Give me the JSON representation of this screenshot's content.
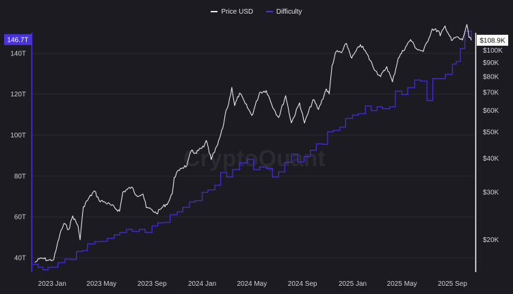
{
  "watermark": "CryptoQuant",
  "colors": {
    "background": "#1c1b21",
    "price": "#e8e8ec",
    "difficulty": "#3f2ccc",
    "left_badge": "#4a33d6",
    "right_badge_bg": "#ffffff",
    "right_badge_text": "#111111"
  },
  "chart_data": {
    "type": "line",
    "legend_position": "top-center",
    "grid": "horizontal",
    "x_range": [
      "2022-11-15",
      "2025-10-25"
    ],
    "x_ticks": [
      "2023 Jan",
      "2023 May",
      "2023 Sep",
      "2024 Jan",
      "2024 May",
      "2024 Sep",
      "2025 Jan",
      "2025 May",
      "2025 Sep"
    ],
    "left_axis": {
      "scale": "linear",
      "range": [
        33,
        150
      ],
      "ticks": [
        "40T",
        "60T",
        "80T",
        "100T",
        "120T",
        "140T"
      ],
      "tick_values": [
        40,
        60,
        80,
        100,
        120,
        140
      ],
      "unit": "T"
    },
    "right_axis": {
      "scale": "log",
      "range": [
        15200,
        116000
      ],
      "ticks": [
        "$20K",
        "$30K",
        "$40K",
        "$50K",
        "$60K",
        "$70K",
        "$80K",
        "$90K",
        "$100K"
      ],
      "tick_values": [
        20000,
        30000,
        40000,
        50000,
        60000,
        70000,
        80000,
        90000,
        100000
      ]
    },
    "current_values": {
      "difficulty": "146.7T",
      "price": "$108.9K"
    },
    "series": [
      {
        "name": "Price USD",
        "axis": "right",
        "points": [
          [
            "2022-11-20",
            16500
          ],
          [
            "2022-12-01",
            17000
          ],
          [
            "2022-12-10",
            17100
          ],
          [
            "2022-12-22",
            16800
          ],
          [
            "2023-01-05",
            16900
          ],
          [
            "2023-01-12",
            18800
          ],
          [
            "2023-01-20",
            21000
          ],
          [
            "2023-01-30",
            23000
          ],
          [
            "2023-02-10",
            21800
          ],
          [
            "2023-02-20",
            24500
          ],
          [
            "2023-03-05",
            22500
          ],
          [
            "2023-03-10",
            20000
          ],
          [
            "2023-03-18",
            26500
          ],
          [
            "2023-03-30",
            28300
          ],
          [
            "2023-04-14",
            30300
          ],
          [
            "2023-04-25",
            28000
          ],
          [
            "2023-05-10",
            27500
          ],
          [
            "2023-05-25",
            26800
          ],
          [
            "2023-06-14",
            25500
          ],
          [
            "2023-06-22",
            30000
          ],
          [
            "2023-07-13",
            31300
          ],
          [
            "2023-07-25",
            29200
          ],
          [
            "2023-08-10",
            29500
          ],
          [
            "2023-08-18",
            26300
          ],
          [
            "2023-09-01",
            25800
          ],
          [
            "2023-09-12",
            25000
          ],
          [
            "2023-09-25",
            26300
          ],
          [
            "2023-10-10",
            27400
          ],
          [
            "2023-10-20",
            29500
          ],
          [
            "2023-10-25",
            34000
          ],
          [
            "2023-11-09",
            36700
          ],
          [
            "2023-11-25",
            37600
          ],
          [
            "2023-12-05",
            42500
          ],
          [
            "2023-12-15",
            41800
          ],
          [
            "2024-01-05",
            44000
          ],
          [
            "2024-01-11",
            46500
          ],
          [
            "2024-01-23",
            39500
          ],
          [
            "2024-02-08",
            45000
          ],
          [
            "2024-02-20",
            51500
          ],
          [
            "2024-02-28",
            60000
          ],
          [
            "2024-03-05",
            63000
          ],
          [
            "2024-03-13",
            73000
          ],
          [
            "2024-03-20",
            62500
          ],
          [
            "2024-04-01",
            69500
          ],
          [
            "2024-04-15",
            63500
          ],
          [
            "2024-05-01",
            57500
          ],
          [
            "2024-05-20",
            70000
          ],
          [
            "2024-06-05",
            71000
          ],
          [
            "2024-06-24",
            60500
          ],
          [
            "2024-07-05",
            56500
          ],
          [
            "2024-07-22",
            68000
          ],
          [
            "2024-08-05",
            54000
          ],
          [
            "2024-08-25",
            64000
          ],
          [
            "2024-09-06",
            53900
          ],
          [
            "2024-09-27",
            65800
          ],
          [
            "2024-10-10",
            60500
          ],
          [
            "2024-10-29",
            72000
          ],
          [
            "2024-11-05",
            69000
          ],
          [
            "2024-11-12",
            88000
          ],
          [
            "2024-11-22",
            99000
          ],
          [
            "2024-12-05",
            98000
          ],
          [
            "2024-12-17",
            106000
          ],
          [
            "2024-12-30",
            93500
          ],
          [
            "2025-01-20",
            105000
          ],
          [
            "2025-02-03",
            98000
          ],
          [
            "2025-02-26",
            84000
          ],
          [
            "2025-03-10",
            80000
          ],
          [
            "2025-03-25",
            87000
          ],
          [
            "2025-04-08",
            76500
          ],
          [
            "2025-04-22",
            93500
          ],
          [
            "2025-05-10",
            103000
          ],
          [
            "2025-05-22",
            109500
          ],
          [
            "2025-06-05",
            101500
          ],
          [
            "2025-06-22",
            99000
          ],
          [
            "2025-07-14",
            120000
          ],
          [
            "2025-07-30",
            117500
          ],
          [
            "2025-08-02",
            113000
          ],
          [
            "2025-08-14",
            123000
          ],
          [
            "2025-08-30",
            108500
          ],
          [
            "2025-09-10",
            112000
          ],
          [
            "2025-09-25",
            109000
          ],
          [
            "2025-10-06",
            124500
          ],
          [
            "2025-10-11",
            111500
          ],
          [
            "2025-10-17",
            108900
          ]
        ]
      },
      {
        "name": "Difficulty",
        "axis": "left",
        "points": [
          [
            "2022-11-15",
            36.8
          ],
          [
            "2022-11-28",
            35.4
          ],
          [
            "2022-12-10",
            34.1
          ],
          [
            "2022-12-22",
            35.3
          ],
          [
            "2023-01-04",
            35.4
          ],
          [
            "2023-01-15",
            37.6
          ],
          [
            "2023-02-01",
            39.4
          ],
          [
            "2023-02-15",
            39.2
          ],
          [
            "2023-03-01",
            43.1
          ],
          [
            "2023-03-15",
            43.5
          ],
          [
            "2023-03-28",
            46.8
          ],
          [
            "2023-04-15",
            47.9
          ],
          [
            "2023-05-01",
            48.0
          ],
          [
            "2023-05-15",
            49.5
          ],
          [
            "2023-06-01",
            51.2
          ],
          [
            "2023-06-15",
            52.4
          ],
          [
            "2023-07-01",
            53.9
          ],
          [
            "2023-07-15",
            52.9
          ],
          [
            "2023-08-01",
            53.9
          ],
          [
            "2023-08-15",
            52.4
          ],
          [
            "2023-09-01",
            55.6
          ],
          [
            "2023-09-15",
            57.1
          ],
          [
            "2023-10-01",
            57.3
          ],
          [
            "2023-10-15",
            61.0
          ],
          [
            "2023-11-01",
            62.5
          ],
          [
            "2023-11-15",
            64.7
          ],
          [
            "2023-12-01",
            67.3
          ],
          [
            "2023-12-15",
            67.9
          ],
          [
            "2024-01-01",
            72.0
          ],
          [
            "2024-01-15",
            73.2
          ],
          [
            "2024-02-01",
            75.5
          ],
          [
            "2024-02-15",
            81.7
          ],
          [
            "2024-03-01",
            79.5
          ],
          [
            "2024-03-15",
            83.1
          ],
          [
            "2024-04-01",
            86.4
          ],
          [
            "2024-04-20",
            88.1
          ],
          [
            "2024-05-05",
            83.1
          ],
          [
            "2024-05-20",
            84.4
          ],
          [
            "2024-06-05",
            83.7
          ],
          [
            "2024-06-20",
            79.5
          ],
          [
            "2024-07-05",
            82.0
          ],
          [
            "2024-07-20",
            86.7
          ],
          [
            "2024-08-05",
            90.7
          ],
          [
            "2024-08-20",
            86.9
          ],
          [
            "2024-09-05",
            89.5
          ],
          [
            "2024-09-20",
            92.6
          ],
          [
            "2024-10-05",
            95.7
          ],
          [
            "2024-10-20",
            95.5
          ],
          [
            "2024-11-01",
            101.6
          ],
          [
            "2024-11-15",
            102.3
          ],
          [
            "2024-12-01",
            103.9
          ],
          [
            "2024-12-15",
            108.1
          ],
          [
            "2025-01-01",
            109.8
          ],
          [
            "2025-01-15",
            110.5
          ],
          [
            "2025-02-01",
            114.2
          ],
          [
            "2025-02-15",
            112.0
          ],
          [
            "2025-03-01",
            113.8
          ],
          [
            "2025-03-15",
            112.9
          ],
          [
            "2025-04-01",
            113.8
          ],
          [
            "2025-04-15",
            121.5
          ],
          [
            "2025-05-01",
            119.8
          ],
          [
            "2025-05-15",
            123.2
          ],
          [
            "2025-06-01",
            126.9
          ],
          [
            "2025-06-15",
            126.4
          ],
          [
            "2025-07-01",
            116.9
          ],
          [
            "2025-07-15",
            127.6
          ],
          [
            "2025-08-01",
            127.6
          ],
          [
            "2025-08-15",
            129.7
          ],
          [
            "2025-09-01",
            134.7
          ],
          [
            "2025-09-10",
            136.0
          ],
          [
            "2025-09-20",
            142.3
          ],
          [
            "2025-10-01",
            150.8
          ],
          [
            "2025-10-17",
            146.7
          ]
        ]
      }
    ]
  }
}
